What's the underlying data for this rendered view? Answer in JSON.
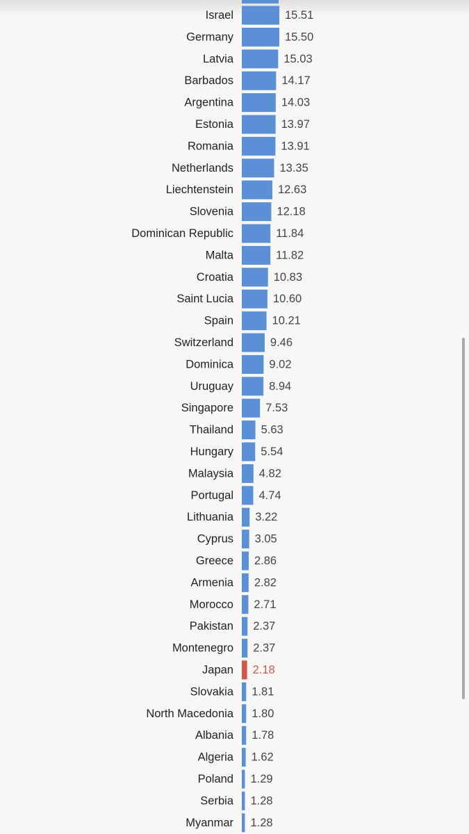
{
  "chart_data": {
    "type": "bar",
    "orientation": "horizontal",
    "categories": [
      "Israel",
      "Germany",
      "Latvia",
      "Barbados",
      "Argentina",
      "Estonia",
      "Romania",
      "Netherlands",
      "Liechtenstein",
      "Slovenia",
      "Dominican Republic",
      "Malta",
      "Croatia",
      "Saint Lucia",
      "Spain",
      "Switzerland",
      "Dominica",
      "Uruguay",
      "Singapore",
      "Thailand",
      "Hungary",
      "Malaysia",
      "Portugal",
      "Lithuania",
      "Cyprus",
      "Greece",
      "Armenia",
      "Morocco",
      "Pakistan",
      "Montenegro",
      "Japan",
      "Slovakia",
      "North Macedonia",
      "Albania",
      "Algeria",
      "Poland",
      "Serbia",
      "Myanmar"
    ],
    "values": [
      15.51,
      15.5,
      15.03,
      14.17,
      14.03,
      13.97,
      13.91,
      13.35,
      12.63,
      12.18,
      11.84,
      11.82,
      10.83,
      10.6,
      10.21,
      9.46,
      9.02,
      8.94,
      7.53,
      5.63,
      5.54,
      4.82,
      4.74,
      3.22,
      3.05,
      2.86,
      2.82,
      2.71,
      2.37,
      2.37,
      2.18,
      1.81,
      1.8,
      1.78,
      1.62,
      1.29,
      1.28,
      1.28
    ],
    "value_labels": [
      "15.51",
      "15.50",
      "15.03",
      "14.17",
      "14.03",
      "13.97",
      "13.91",
      "13.35",
      "12.63",
      "12.18",
      "11.84",
      "11.82",
      "10.83",
      "10.60",
      "10.21",
      "9.46",
      "9.02",
      "8.94",
      "7.53",
      "5.63",
      "5.54",
      "4.82",
      "4.74",
      "3.22",
      "3.05",
      "2.86",
      "2.82",
      "2.71",
      "2.37",
      "2.37",
      "2.18",
      "1.81",
      "1.80",
      "1.78",
      "1.62",
      "1.29",
      "1.28",
      "1.28"
    ],
    "highlight": [
      "Japan"
    ],
    "xlim": [
      0,
      16
    ],
    "colors": {
      "bar": "#5b8fd6",
      "highlight": "#d1574a",
      "label": "#222222",
      "value": "#444444",
      "background": "#f7f7f5"
    }
  }
}
